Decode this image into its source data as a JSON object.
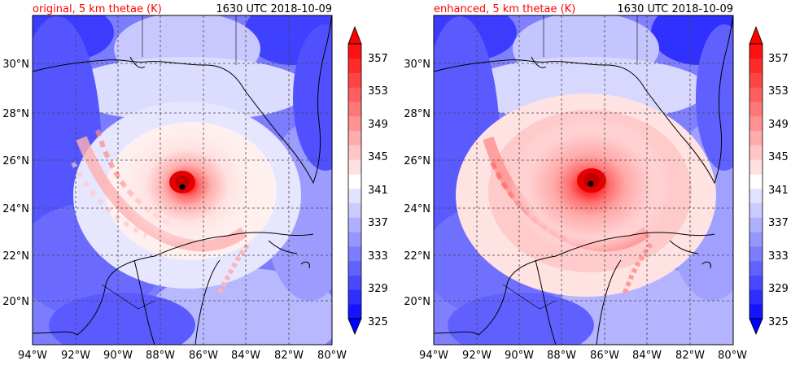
{
  "panels": [
    {
      "title": "original, 5 km thetae (K)",
      "time": "1630 UTC 2018-10-09",
      "storm_center": {
        "lon": -87.0,
        "lat": 24.9
      }
    },
    {
      "title": "enhanced, 5 km thetae (K)",
      "time": "1630 UTC 2018-10-09",
      "storm_center": {
        "lon": -86.6,
        "lat": 25.0
      }
    }
  ],
  "map": {
    "lat_ticks": [
      "30°N",
      "28°N",
      "26°N",
      "24°N",
      "22°N",
      "20°N"
    ],
    "lon_ticks": [
      "94°W",
      "92°W",
      "90°W",
      "88°W",
      "86°W",
      "84°W",
      "82°W",
      "80°W"
    ],
    "lat_values": [
      30,
      28,
      26,
      24,
      22,
      20
    ],
    "lon_values": [
      -94,
      -92,
      -90,
      -88,
      -86,
      -84,
      -82,
      -80
    ],
    "extent": {
      "lon_min": -94,
      "lon_max": -80,
      "lat_min": 18.2,
      "lat_max": 32
    }
  },
  "colorbar": {
    "tick_labels": [
      "357",
      "353",
      "349",
      "345",
      "341",
      "337",
      "333",
      "329",
      "325"
    ],
    "tick_values": [
      357,
      353,
      349,
      345,
      341,
      337,
      333,
      329,
      325
    ],
    "min": 325,
    "max": 359,
    "colors": [
      "#1414ff",
      "#2e2eff",
      "#4848ff",
      "#6262ff",
      "#7c7cff",
      "#9696ff",
      "#b0b0ff",
      "#cacaff",
      "#e2e2ff",
      "#ffffff",
      "#ffe0e0",
      "#ffc6c6",
      "#ffacac",
      "#ff9292",
      "#ff7878",
      "#ff5e5e",
      "#ff4444",
      "#ff2a2a",
      "#ff1010"
    ],
    "under_color": "#0000ff",
    "over_color": "#ff0000"
  },
  "colors": {
    "title": "#ff0000",
    "marker": "#000000",
    "grid": "#444444"
  }
}
